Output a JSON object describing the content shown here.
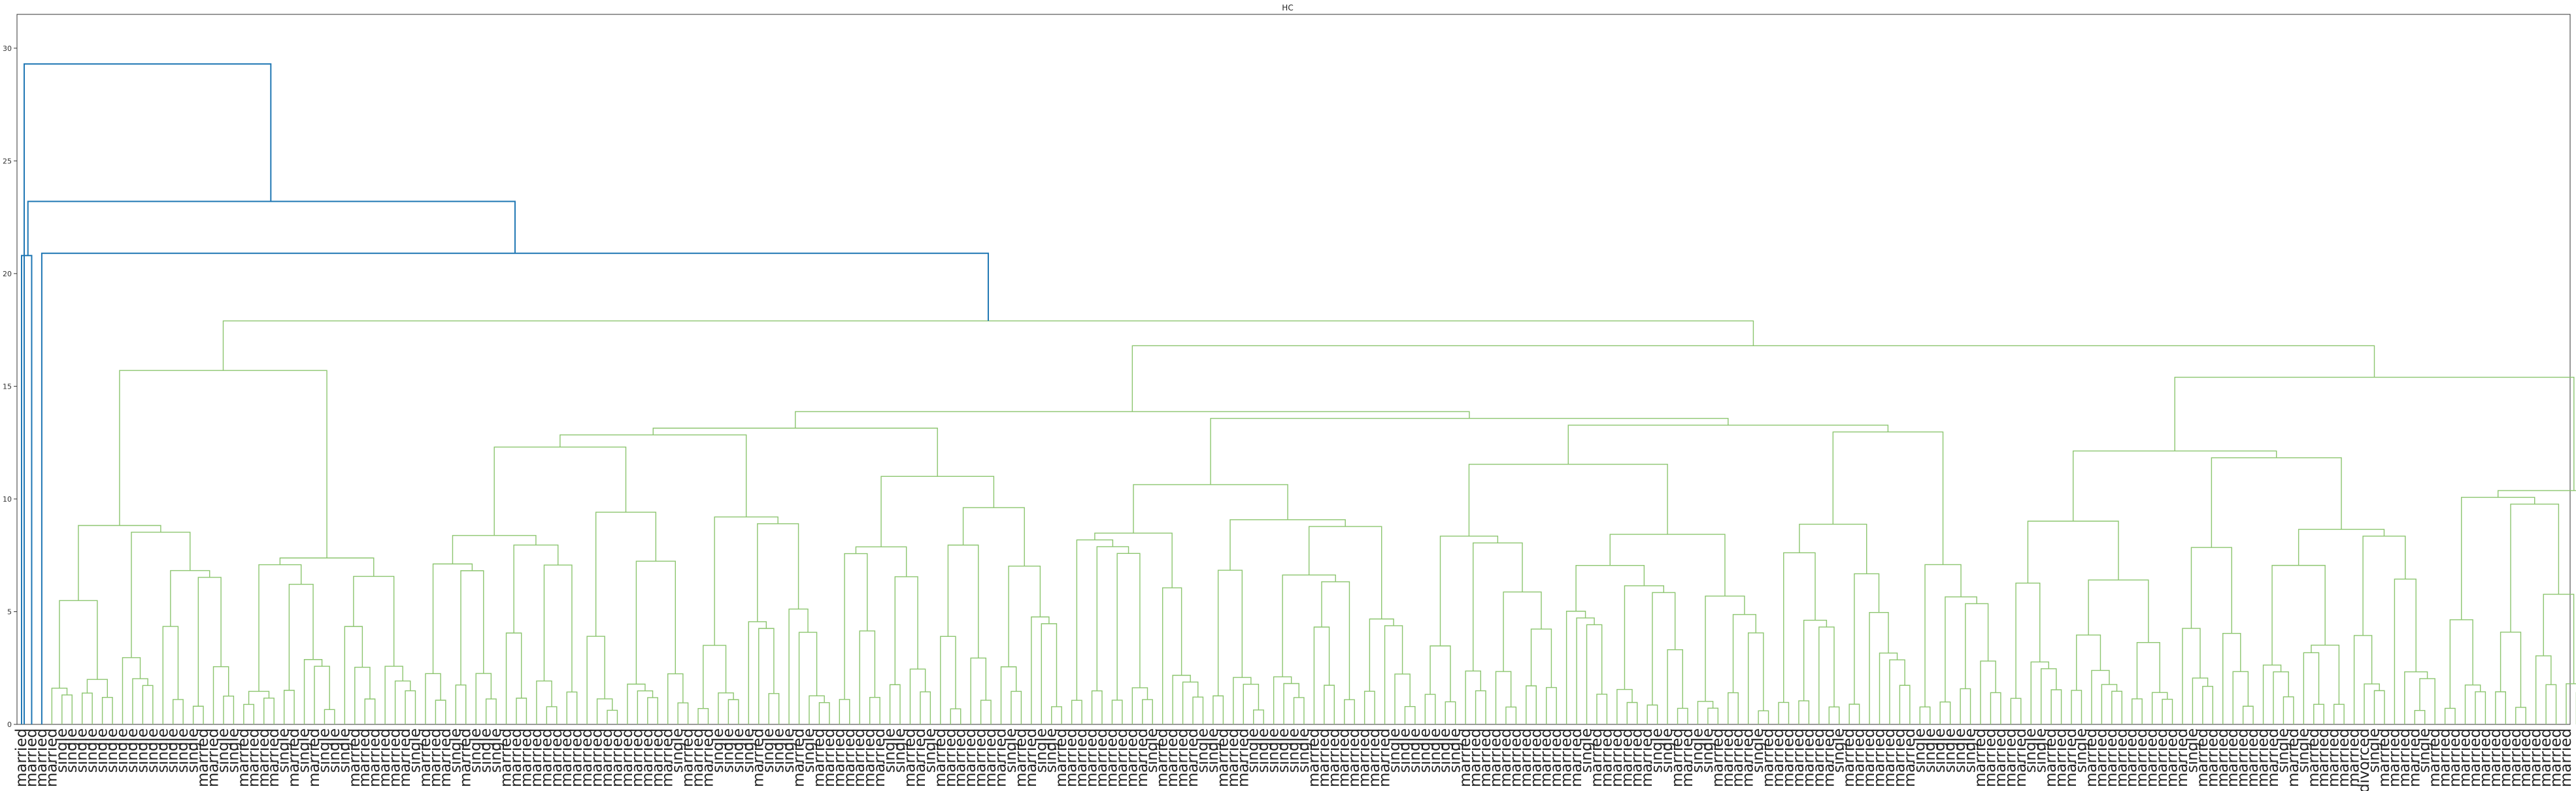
{
  "chart_data": {
    "type": "dendrogram",
    "title": "HC",
    "xlabel": "",
    "ylabel": "",
    "ylim": [
      0,
      31.5
    ],
    "yticks": [
      0,
      5,
      10,
      15,
      20,
      25,
      30
    ],
    "grid": false,
    "legend": "none",
    "colors": {
      "root_links": "#1f77b4",
      "cluster_links": "#8cc56f",
      "axes": "#333333"
    },
    "top_merges": [
      {
        "height": 29.3,
        "note": "root"
      },
      {
        "height": 23.2
      },
      {
        "height": 20.8
      },
      {
        "height": 20.9
      },
      {
        "height": 17.9
      },
      {
        "height": 16.8
      },
      {
        "height": 15.7
      }
    ],
    "leaf_labels": [
      "married",
      "married",
      "married",
      "married",
      "single",
      "single",
      "single",
      "single",
      "single",
      "single",
      "single",
      "single",
      "single",
      "single",
      "single",
      "single",
      "single",
      "single",
      "married",
      "married",
      "single",
      "single",
      "married",
      "married",
      "married",
      "married",
      "single",
      "married",
      "single",
      "married",
      "single",
      "single",
      "single",
      "married",
      "married",
      "married",
      "married",
      "married",
      "married",
      "single",
      "married",
      "married",
      "married",
      "single",
      "married",
      "single",
      "single",
      "single",
      "married",
      "married",
      "married",
      "married",
      "married",
      "married",
      "married",
      "married",
      "married",
      "married",
      "married",
      "married",
      "married",
      "married",
      "married",
      "married",
      "married",
      "single",
      "married",
      "married",
      "married",
      "single",
      "single",
      "single",
      "single",
      "married",
      "single",
      "single",
      "single",
      "married",
      "single",
      "married",
      "married",
      "married",
      "married",
      "married",
      "married",
      "married",
      "single",
      "single",
      "married",
      "married",
      "single",
      "married",
      "married",
      "married",
      "married",
      "married",
      "married",
      "married",
      "single",
      "married",
      "married",
      "single",
      "single",
      "married",
      "married",
      "married",
      "married",
      "married",
      "married",
      "married",
      "married",
      "married",
      "single",
      "married",
      "married",
      "married",
      "married",
      "single",
      "single",
      "married",
      "married",
      "married",
      "single",
      "single",
      "single",
      "single",
      "single",
      "single",
      "married",
      "married",
      "married",
      "married",
      "married",
      "married",
      "married",
      "married",
      "single",
      "single",
      "single",
      "single",
      "single",
      "single",
      "single",
      "married",
      "married",
      "married",
      "married",
      "married",
      "married",
      "married",
      "married",
      "married",
      "married",
      "married",
      "married",
      "single",
      "married",
      "married",
      "married",
      "married",
      "married",
      "married",
      "single",
      "single",
      "married",
      "married",
      "single",
      "single",
      "married",
      "married",
      "married",
      "married",
      "single",
      "married",
      "married",
      "married",
      "married",
      "married",
      "married",
      "married",
      "single",
      "married",
      "married",
      "married",
      "married",
      "married",
      "married",
      "married",
      "single",
      "single",
      "single",
      "single",
      "single",
      "single",
      "married",
      "married",
      "married",
      "married",
      "married",
      "single",
      "single",
      "married",
      "married",
      "married",
      "single",
      "married",
      "married",
      "married",
      "married",
      "married",
      "married",
      "married",
      "married",
      "married",
      "married",
      "single",
      "married",
      "married",
      "married",
      "married",
      "married",
      "married",
      "married",
      "married",
      "single",
      "married",
      "single",
      "married",
      "married",
      "married",
      "married",
      "married",
      "divorced",
      "single",
      "married",
      "married",
      "married",
      "married",
      "single",
      "married",
      "married",
      "married",
      "married",
      "married",
      "married",
      "married",
      "married",
      "married",
      "married",
      "married",
      "married",
      "married",
      "married"
    ]
  }
}
